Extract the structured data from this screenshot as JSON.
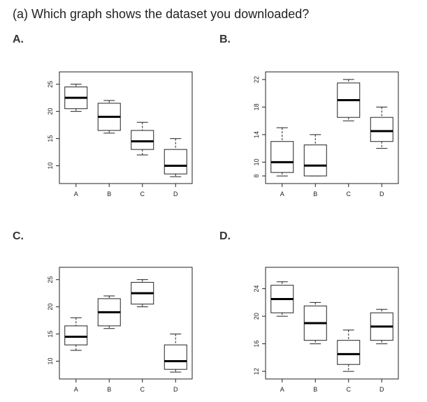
{
  "question": "(a) Which graph shows the dataset you downloaded?",
  "options": [
    {
      "label": "A."
    },
    {
      "label": "B."
    },
    {
      "label": "C."
    },
    {
      "label": "D."
    }
  ],
  "chart_data": [
    {
      "type": "box",
      "categories": [
        "A",
        "B",
        "C",
        "D"
      ],
      "yticks": [
        10,
        15,
        20,
        25
      ],
      "ylim": [
        7.5,
        26.5
      ],
      "boxes": [
        {
          "min": 20,
          "q1": 20.5,
          "median": 22.5,
          "q3": 24.5,
          "max": 25
        },
        {
          "min": 16,
          "q1": 16.5,
          "median": 19,
          "q3": 21.5,
          "max": 22
        },
        {
          "min": 12,
          "q1": 13,
          "median": 14.5,
          "q3": 16.5,
          "max": 18
        },
        {
          "min": 8,
          "q1": 8.5,
          "median": 10,
          "q3": 13,
          "max": 15
        }
      ]
    },
    {
      "type": "box",
      "categories": [
        "A",
        "B",
        "C",
        "D"
      ],
      "yticks": [
        8,
        10,
        14,
        18,
        22
      ],
      "ylim": [
        7.5,
        22.5
      ],
      "boxes": [
        {
          "min": 8,
          "q1": 8.5,
          "median": 10,
          "q3": 13,
          "max": 15
        },
        {
          "min": 8,
          "q1": 8,
          "median": 9.5,
          "q3": 12.5,
          "max": 14
        },
        {
          "min": 16,
          "q1": 16.5,
          "median": 19,
          "q3": 21.5,
          "max": 22
        },
        {
          "min": 12,
          "q1": 13,
          "median": 14.5,
          "q3": 16.5,
          "max": 18
        }
      ]
    },
    {
      "type": "box",
      "categories": [
        "A",
        "B",
        "C",
        "D"
      ],
      "yticks": [
        10,
        15,
        20,
        25
      ],
      "ylim": [
        7.5,
        26.5
      ],
      "boxes": [
        {
          "min": 12,
          "q1": 13,
          "median": 14.5,
          "q3": 16.5,
          "max": 18
        },
        {
          "min": 16,
          "q1": 16.5,
          "median": 19,
          "q3": 21.5,
          "max": 22
        },
        {
          "min": 20,
          "q1": 20.5,
          "median": 22.5,
          "q3": 24.5,
          "max": 25
        },
        {
          "min": 8,
          "q1": 8.5,
          "median": 10,
          "q3": 13,
          "max": 15
        }
      ]
    },
    {
      "type": "box",
      "categories": [
        "A",
        "B",
        "C",
        "D"
      ],
      "yticks": [
        12,
        16,
        20,
        24
      ],
      "ylim": [
        11.5,
        26.5
      ],
      "boxes": [
        {
          "min": 20,
          "q1": 20.5,
          "median": 22.5,
          "q3": 24.5,
          "max": 25
        },
        {
          "min": 16,
          "q1": 16.5,
          "median": 19,
          "q3": 21.5,
          "max": 22
        },
        {
          "min": 12,
          "q1": 13,
          "median": 14.5,
          "q3": 16.5,
          "max": 18
        },
        {
          "min": 16,
          "q1": 16.5,
          "median": 18.5,
          "q3": 20.5,
          "max": 21
        }
      ]
    }
  ]
}
